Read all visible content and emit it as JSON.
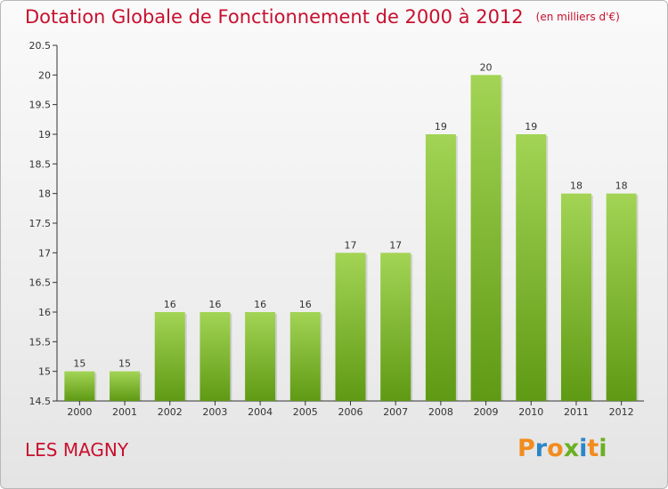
{
  "header": {
    "title": "Dotation Globale de Fonctionnement de 2000 à 2012",
    "unit": "(en milliers d'€)"
  },
  "footer": {
    "commune": "LES MAGNY",
    "logo_letters": [
      {
        "ch": "P",
        "color": "#f28c1e"
      },
      {
        "ch": "r",
        "color": "#2b86c8"
      },
      {
        "ch": "o",
        "color": "#f28c1e"
      },
      {
        "ch": "x",
        "color": "#6ab023"
      },
      {
        "ch": "i",
        "color": "#2b86c8"
      },
      {
        "ch": "t",
        "color": "#f28c1e"
      },
      {
        "ch": "i",
        "color": "#6ab023"
      }
    ]
  },
  "chart_data": {
    "type": "bar",
    "title": "Dotation Globale de Fonctionnement de 2000 à 2012",
    "subtitle": "(en milliers d'€)",
    "categories": [
      "2000",
      "2001",
      "2002",
      "2003",
      "2004",
      "2005",
      "2006",
      "2007",
      "2008",
      "2009",
      "2010",
      "2011",
      "2012"
    ],
    "values": [
      15,
      15,
      16,
      16,
      16,
      16,
      17,
      17,
      19,
      20,
      19,
      18,
      18
    ],
    "data_labels": [
      "15",
      "15",
      "16",
      "16",
      "16",
      "16",
      "17",
      "17",
      "19",
      "20",
      "19",
      "18",
      "18"
    ],
    "ylim": [
      14.5,
      20.5
    ],
    "yticks": [
      "14.5",
      "15",
      "15.5",
      "16",
      "16.5",
      "17",
      "17.5",
      "18",
      "18.5",
      "19",
      "19.5",
      "20",
      "20.5"
    ],
    "xlabel": "",
    "ylabel": "",
    "grid": false,
    "bar_color_top": "#a3d455",
    "bar_color_bottom": "#5f9a14",
    "axis_color": "#333333"
  }
}
